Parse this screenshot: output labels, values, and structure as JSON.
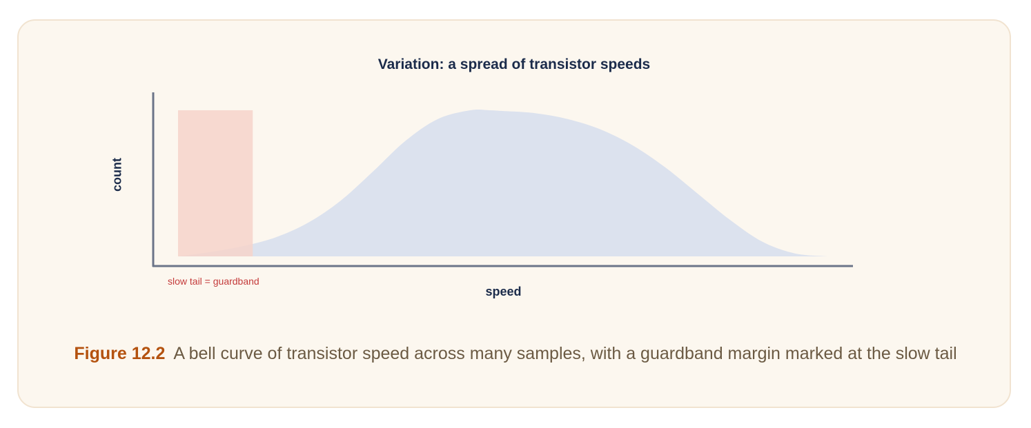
{
  "figure": {
    "number_label": "Figure 12.2",
    "caption": "A bell curve of transistor speed across many samples, with a guardband margin marked at the slow tail"
  },
  "colors": {
    "card_bg": "#fcf7ef",
    "card_border": "#f1e3d0",
    "curve_fill": "#dce2ee",
    "guardband_fill": "#f6d3ca",
    "axis": "#6b7488",
    "title_text": "#1b2b4a",
    "annotation_text": "#c43b3b",
    "figure_number": "#b4520f",
    "caption_text": "#6b5a43"
  },
  "chart_data": {
    "type": "area",
    "title": "Variation: a spread of transistor speeds",
    "xlabel": "speed",
    "ylabel": "count",
    "xlim": [
      0,
      1
    ],
    "ylim": [
      0,
      1
    ],
    "grid": false,
    "legend": "none",
    "series": [
      {
        "x": [
          0.0,
          0.05,
          0.1,
          0.15,
          0.2,
          0.25,
          0.3,
          0.35,
          0.4,
          0.45,
          0.48,
          0.5,
          0.55,
          0.6,
          0.65,
          0.7,
          0.75,
          0.8,
          0.85,
          0.9,
          0.95,
          1.0
        ],
        "y": [
          0.0,
          0.03,
          0.07,
          0.13,
          0.23,
          0.38,
          0.58,
          0.79,
          0.94,
          1.0,
          1.0,
          0.995,
          0.98,
          0.94,
          0.87,
          0.76,
          0.61,
          0.43,
          0.25,
          0.1,
          0.02,
          0.0
        ]
      }
    ],
    "guardband": {
      "x_start": 0.0,
      "x_end": 0.115,
      "y_top": 1.0,
      "label": "slow tail = guardband"
    }
  }
}
